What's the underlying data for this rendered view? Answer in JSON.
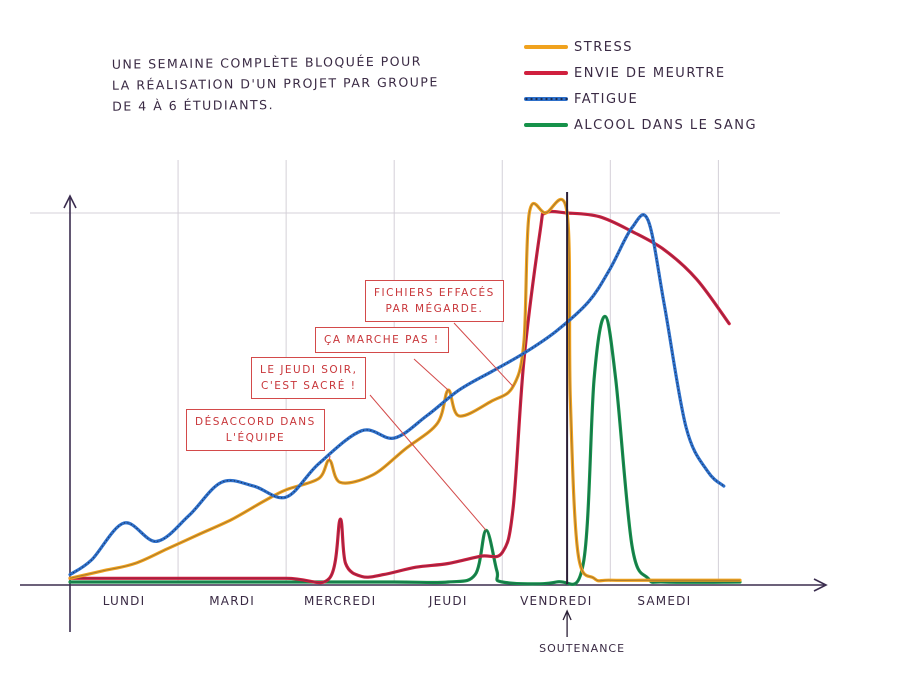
{
  "chart_data": {
    "type": "line",
    "title": "UNE SEMAINE COMPLÈTE BLOQUÉE POUR LA RÉALISATION D'UN PROJET PAR GROUPE DE 4 À 6 ÉTUDIANTS.",
    "title_lines": [
      "UNE SEMAINE COMPLÈTE BLOQUÉE POUR",
      "LA RÉALISATION D'UN PROJET   PAR GROUPE",
      "DE 4 À 6 ÉTUDIANTS."
    ],
    "xlabel": "",
    "ylabel": "",
    "xlim": [
      0,
      6.2
    ],
    "ylim": [
      0,
      100
    ],
    "grid": "vertical",
    "legend_position": "top-right",
    "categories": [
      "LUNDI",
      "MARDI",
      "MERCREDI",
      "JEUDI",
      "VENDREDI",
      "SAMEDI"
    ],
    "series": [
      {
        "name": "STRESS",
        "color": "#f0a21e",
        "x": [
          0,
          0.3,
          0.6,
          0.9,
          1.2,
          1.5,
          1.8,
          2.0,
          2.3,
          2.4,
          2.5,
          2.8,
          3.1,
          3.4,
          3.5,
          3.6,
          3.9,
          4.1,
          4.2,
          4.25,
          4.4,
          4.6,
          4.63,
          4.7,
          4.85,
          5.0,
          5.5,
          6.2
        ],
        "values": [
          1,
          3,
          5,
          9,
          13,
          17,
          22,
          25,
          28,
          33,
          27,
          29,
          36,
          43,
          52,
          45,
          49,
          53,
          65,
          100,
          100,
          100,
          50,
          8,
          1,
          0.5,
          0.5,
          0.5
        ]
      },
      {
        "name": "ENVIE DE MEURTRE",
        "color": "#d0203e",
        "x": [
          0,
          1,
          2,
          2.4,
          2.5,
          2.55,
          2.7,
          2.9,
          3.2,
          3.5,
          3.8,
          4.0,
          4.1,
          4.2,
          4.35,
          4.4,
          4.6,
          4.9,
          5.2,
          5.5,
          5.8,
          6.1
        ],
        "values": [
          1,
          1,
          1,
          1,
          17,
          5,
          1.5,
          2,
          4,
          5,
          7,
          8,
          20,
          60,
          95,
          100,
          100,
          99,
          95,
          90,
          82,
          70
        ]
      },
      {
        "name": "FATIGUE",
        "color": "#2d6fc9",
        "x": [
          0,
          0.2,
          0.5,
          0.8,
          1.1,
          1.4,
          1.7,
          2.0,
          2.3,
          2.7,
          3.0,
          3.3,
          3.6,
          3.9,
          4.2,
          4.5,
          4.8,
          5.0,
          5.2,
          5.35,
          5.5,
          5.7,
          5.9,
          6.05
        ],
        "values": [
          2,
          6,
          16,
          11,
          18,
          27,
          26,
          23,
          32,
          41,
          39,
          45,
          52,
          57,
          62,
          68,
          76,
          85,
          96,
          98,
          75,
          42,
          30,
          26
        ]
      },
      {
        "name": "ALCOOL DANS LE SANG",
        "color": "#16924a",
        "x": [
          0,
          1,
          2,
          3,
          3.5,
          3.75,
          3.85,
          3.95,
          4.0,
          4.5,
          4.75,
          4.85,
          4.95,
          5.05,
          5.2,
          5.35,
          5.5,
          6.2
        ],
        "values": [
          0,
          0,
          0,
          0,
          0,
          2,
          14,
          3,
          0,
          0,
          5,
          55,
          72,
          55,
          10,
          1,
          0,
          0
        ]
      }
    ],
    "annotations": [
      {
        "text": "DÉSACCORD DANS L'ÉQUIPE",
        "lines": [
          "DÉSACCORD DANS",
          "L'ÉQUIPE"
        ],
        "points_to": {
          "x": 2.4,
          "y": 33
        }
      },
      {
        "text": "LE JEUDI SOIR, C'EST SACRÉ !",
        "lines": [
          "LE JEUDI SOIR,",
          "C'EST SACRÉ !"
        ],
        "points_to": {
          "x": 3.85,
          "y": 14
        }
      },
      {
        "text": "ÇA MARCHE PAS !",
        "lines": [
          "ÇA MARCHE PAS !"
        ],
        "points_to": {
          "x": 3.5,
          "y": 52
        }
      },
      {
        "text": "FICHIERS EFFACÉS PAR MÉGARDE.",
        "lines": [
          "FICHIERS EFFACÉS",
          "PAR MÉGARDE."
        ],
        "points_to": {
          "x": 4.1,
          "y": 53
        }
      }
    ],
    "event_marker": {
      "label": "SOUTENANCE",
      "x": 4.6
    }
  }
}
